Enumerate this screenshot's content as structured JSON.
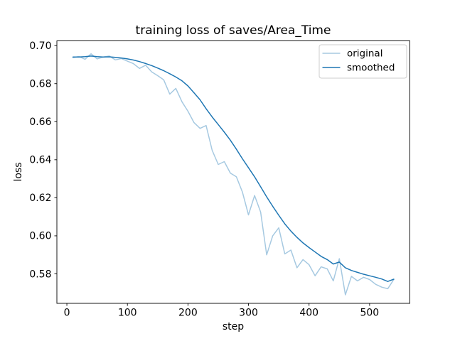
{
  "chart_data": {
    "type": "line",
    "title": "training loss of saves/Area_Time",
    "xlabel": "step",
    "ylabel": "loss",
    "xlim": [
      -16.5,
      566.5
    ],
    "ylim": [
      0.5645,
      0.7025
    ],
    "xticks": [
      0,
      100,
      200,
      300,
      400,
      500
    ],
    "yticks": [
      0.58,
      0.6,
      0.62,
      0.64,
      0.66,
      0.68,
      0.7
    ],
    "grid": false,
    "legend_position": "upper right",
    "x": [
      10,
      20,
      30,
      40,
      50,
      60,
      70,
      80,
      90,
      100,
      110,
      120,
      130,
      140,
      150,
      160,
      170,
      180,
      190,
      200,
      210,
      220,
      230,
      240,
      250,
      260,
      270,
      280,
      290,
      300,
      310,
      320,
      330,
      340,
      350,
      360,
      370,
      380,
      390,
      400,
      410,
      420,
      430,
      440,
      450,
      460,
      470,
      480,
      490,
      500,
      510,
      520,
      530,
      540
    ],
    "series": [
      {
        "name": "original",
        "color": "#a6c9e1",
        "values": [
          0.6937,
          0.6943,
          0.6928,
          0.6957,
          0.693,
          0.694,
          0.6945,
          0.6925,
          0.6932,
          0.6918,
          0.6905,
          0.688,
          0.6897,
          0.6862,
          0.6842,
          0.682,
          0.6745,
          0.6775,
          0.6705,
          0.6655,
          0.6595,
          0.6565,
          0.658,
          0.645,
          0.6375,
          0.639,
          0.633,
          0.631,
          0.623,
          0.611,
          0.6212,
          0.6125,
          0.59,
          0.6,
          0.6042,
          0.5905,
          0.5925,
          0.5832,
          0.5875,
          0.5848,
          0.579,
          0.5837,
          0.5826,
          0.5763,
          0.588,
          0.569,
          0.5787,
          0.5763,
          0.5782,
          0.577,
          0.5745,
          0.573,
          0.5722,
          0.577
        ]
      },
      {
        "name": "smoothed",
        "color": "#1f77b4",
        "values": [
          0.694,
          0.694,
          0.6942,
          0.6945,
          0.6942,
          0.694,
          0.6941,
          0.6938,
          0.6935,
          0.693,
          0.6924,
          0.6916,
          0.6906,
          0.6895,
          0.6882,
          0.6868,
          0.6852,
          0.6835,
          0.6815,
          0.6788,
          0.6752,
          0.6715,
          0.6668,
          0.6625,
          0.6585,
          0.6545,
          0.6503,
          0.6455,
          0.6405,
          0.6358,
          0.631,
          0.6258,
          0.6205,
          0.6155,
          0.6108,
          0.6063,
          0.6025,
          0.5992,
          0.5963,
          0.5938,
          0.5915,
          0.5892,
          0.5875,
          0.5852,
          0.5862,
          0.5832,
          0.5818,
          0.5808,
          0.5798,
          0.579,
          0.5782,
          0.5773,
          0.576,
          0.5772
        ]
      }
    ]
  }
}
